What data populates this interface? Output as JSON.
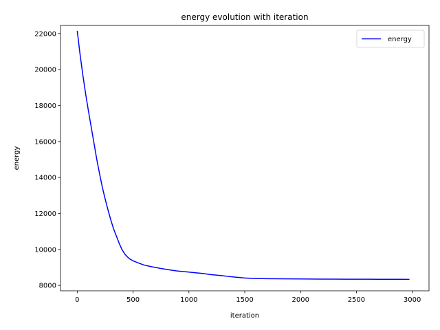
{
  "chart_data": {
    "type": "line",
    "title": "energy evolution with iteration",
    "xlabel": "iteration",
    "ylabel": "energy",
    "xlim": [
      -150,
      3150
    ],
    "ylim": [
      7700,
      22450
    ],
    "xticks": [
      0,
      500,
      1000,
      1500,
      2000,
      2500,
      3000
    ],
    "yticks": [
      8000,
      10000,
      12000,
      14000,
      16000,
      18000,
      20000,
      22000
    ],
    "grid": false,
    "legend_position": "top-right",
    "series": [
      {
        "name": "energy",
        "color": "#0000ff",
        "x": [
          0,
          25,
          50,
          75,
          100,
          125,
          150,
          175,
          200,
          225,
          250,
          275,
          300,
          325,
          350,
          375,
          400,
          425,
          450,
          475,
          500,
          550,
          600,
          650,
          700,
          750,
          800,
          850,
          900,
          950,
          1000,
          1050,
          1100,
          1150,
          1200,
          1250,
          1300,
          1350,
          1400,
          1450,
          1500,
          1550,
          1600,
          1700,
          1800,
          1900,
          2000,
          2100,
          2200,
          2300,
          2400,
          2500,
          2600,
          2700,
          2800,
          2900,
          2975
        ],
        "y": [
          22150,
          20850,
          19700,
          18650,
          17700,
          16800,
          15900,
          15000,
          14200,
          13450,
          12800,
          12200,
          11650,
          11150,
          10750,
          10350,
          10000,
          9750,
          9580,
          9450,
          9370,
          9240,
          9130,
          9060,
          9000,
          8940,
          8890,
          8840,
          8800,
          8770,
          8740,
          8710,
          8680,
          8640,
          8600,
          8570,
          8540,
          8500,
          8470,
          8440,
          8410,
          8395,
          8385,
          8375,
          8368,
          8362,
          8358,
          8355,
          8352,
          8350,
          8347,
          8345,
          8343,
          8342,
          8340,
          8338,
          8336
        ]
      }
    ]
  }
}
